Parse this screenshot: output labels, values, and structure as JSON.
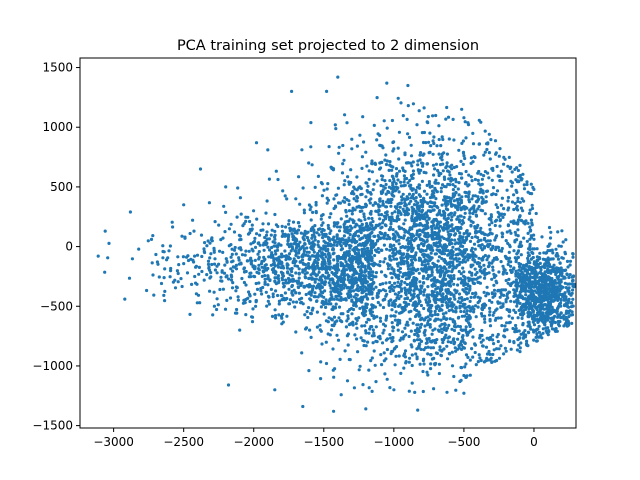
{
  "chart_data": {
    "type": "scatter",
    "title": "PCA training set projected to 2 dimension",
    "xlabel": "",
    "ylabel": "",
    "xlim": [
      -3240,
      300
    ],
    "ylim": [
      -1520,
      1580
    ],
    "xticks": [
      -3000,
      -2500,
      -2000,
      -1500,
      -1000,
      -500,
      0
    ],
    "yticks": [
      -1500,
      -1000,
      -500,
      0,
      500,
      1000,
      1500
    ],
    "grid": false,
    "legend": "none",
    "series_color": "#1f77b4",
    "point_count": 5200,
    "point_seed": 42,
    "points_sample": [
      [
        -3110,
        -80
      ],
      [
        -3060,
        130
      ],
      [
        -2880,
        290
      ],
      [
        -2920,
        -440
      ],
      [
        -2730,
        60
      ],
      [
        -2640,
        -260
      ],
      [
        -2500,
        350
      ],
      [
        -2380,
        650
      ],
      [
        -2200,
        500
      ],
      [
        -2180,
        -1160
      ],
      [
        -1980,
        870
      ],
      [
        -1900,
        810
      ],
      [
        -1850,
        -1200
      ],
      [
        -1730,
        1300
      ],
      [
        -1650,
        -1340
      ],
      [
        -1480,
        1300
      ],
      [
        -1430,
        -1380
      ],
      [
        -1400,
        1420
      ],
      [
        -1200,
        -1360
      ],
      [
        -1050,
        1370
      ],
      [
        -900,
        1350
      ],
      [
        -830,
        -1370
      ],
      [
        -500,
        1080
      ],
      [
        -330,
        860
      ],
      [
        -100,
        680
      ],
      [
        -50,
        520
      ],
      [
        120,
        120
      ],
      [
        220,
        -200
      ],
      [
        260,
        -400
      ],
      [
        230,
        -560
      ],
      [
        150,
        -700
      ],
      [
        -100,
        -880
      ],
      [
        -500,
        -1080
      ],
      [
        -1000,
        -1200
      ],
      [
        -1300,
        900
      ],
      [
        -1100,
        700
      ],
      [
        -900,
        400
      ],
      [
        -700,
        100
      ],
      [
        -1200,
        -500
      ],
      [
        -800,
        -600
      ],
      [
        -400,
        -300
      ],
      [
        -600,
        600
      ],
      [
        -1600,
        -100
      ],
      [
        -2000,
        -250
      ],
      [
        -2300,
        -150
      ],
      [
        -1400,
        200
      ],
      [
        -1700,
        400
      ],
      [
        -1800,
        -600
      ],
      [
        -2100,
        -700
      ],
      [
        -300,
        200
      ]
    ]
  }
}
